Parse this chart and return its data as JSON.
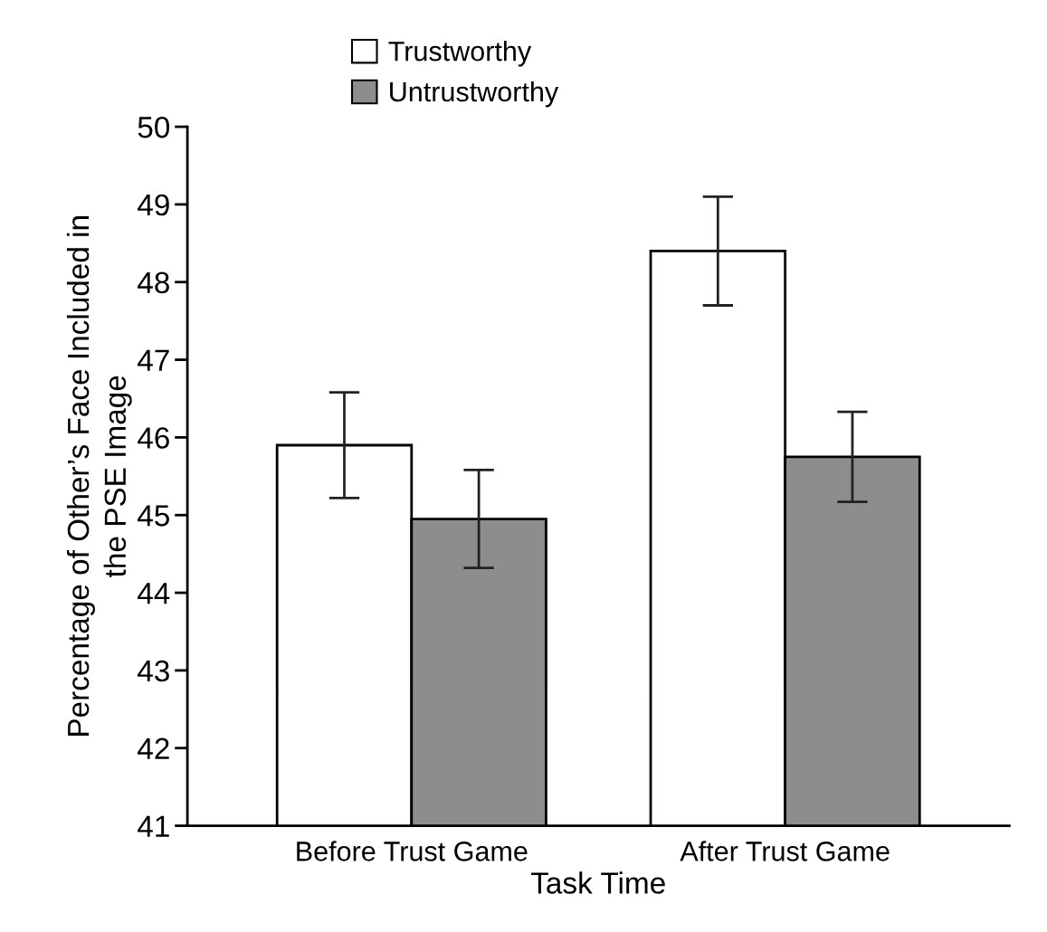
{
  "chart_data": {
    "type": "bar",
    "categories": [
      "Before Trust Game",
      "After Trust Game"
    ],
    "series": [
      {
        "name": "Trustworthy",
        "color": "#ffffff",
        "values": [
          45.9,
          48.4
        ],
        "errors": [
          0.68,
          0.7
        ]
      },
      {
        "name": "Untrustworthy",
        "color": "#8c8d8f",
        "values": [
          44.95,
          45.75
        ],
        "errors": [
          0.63,
          0.58
        ]
      }
    ],
    "xlabel": "Task Time",
    "ylabel": "Percentage of Other’s Face Included in\nthe PSE Image",
    "ylim": [
      41,
      50
    ],
    "yticks": [
      41,
      42,
      43,
      44,
      45,
      46,
      47,
      48,
      49,
      50
    ],
    "grid": false,
    "legend": "top left"
  }
}
